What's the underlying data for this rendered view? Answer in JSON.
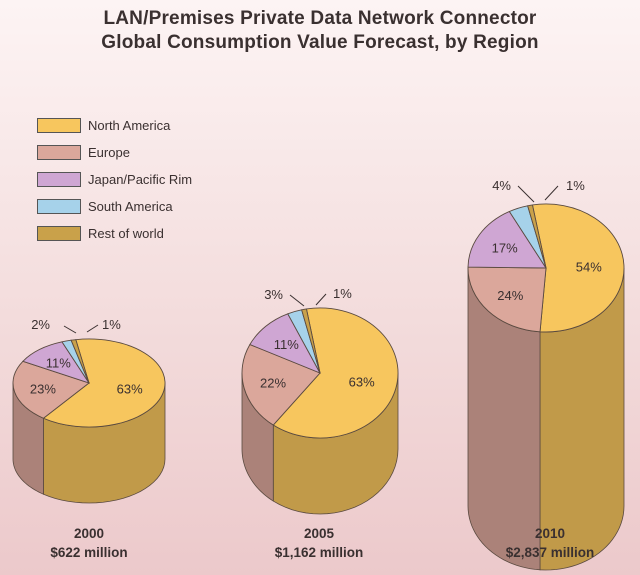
{
  "title_lines": [
    "LAN/Premises Private Data Network Connector",
    "Global Consumption Value Forecast, by Region"
  ],
  "colors": {
    "North America": "#f7c65e",
    "Europe": "#dba79b",
    "Japan/Pacific Rim": "#cfa6d3",
    "South America": "#a6d2ea",
    "Rest of world": "#c9a14a"
  },
  "chart_data": {
    "type": "pie",
    "title": "LAN/Premises Private Data Network Connector Global Consumption Value Forecast, by Region",
    "legend": [
      "North America",
      "Europe",
      "Japan/Pacific Rim",
      "South America",
      "Rest of world"
    ],
    "legend_position": "top-left",
    "pies": [
      {
        "year": "2000",
        "total": "$622 million",
        "slices": [
          {
            "name": "North America",
            "value": 63,
            "label": "63%"
          },
          {
            "name": "Europe",
            "value": 23,
            "label": "23%"
          },
          {
            "name": "Japan/Pacific Rim",
            "value": 11,
            "label": "11%"
          },
          {
            "name": "South America",
            "value": 2,
            "label": "2%"
          },
          {
            "name": "Rest of world",
            "value": 1,
            "label": "1%"
          }
        ]
      },
      {
        "year": "2005",
        "total": "$1,162 million",
        "slices": [
          {
            "name": "North America",
            "value": 63,
            "label": "63%"
          },
          {
            "name": "Europe",
            "value": 22,
            "label": "22%"
          },
          {
            "name": "Japan/Pacific Rim",
            "value": 11,
            "label": "11%"
          },
          {
            "name": "South America",
            "value": 3,
            "label": "3%"
          },
          {
            "name": "Rest of world",
            "value": 1,
            "label": "1%"
          }
        ]
      },
      {
        "year": "2010",
        "total": "$2,837 million",
        "slices": [
          {
            "name": "North America",
            "value": 54,
            "label": "54%"
          },
          {
            "name": "Europe",
            "value": 24,
            "label": "24%"
          },
          {
            "name": "Japan/Pacific Rim",
            "value": 17,
            "label": "17%"
          },
          {
            "name": "South America",
            "value": 4,
            "label": "4%"
          },
          {
            "name": "Rest of world",
            "value": 1,
            "label": "1%"
          }
        ]
      }
    ]
  }
}
